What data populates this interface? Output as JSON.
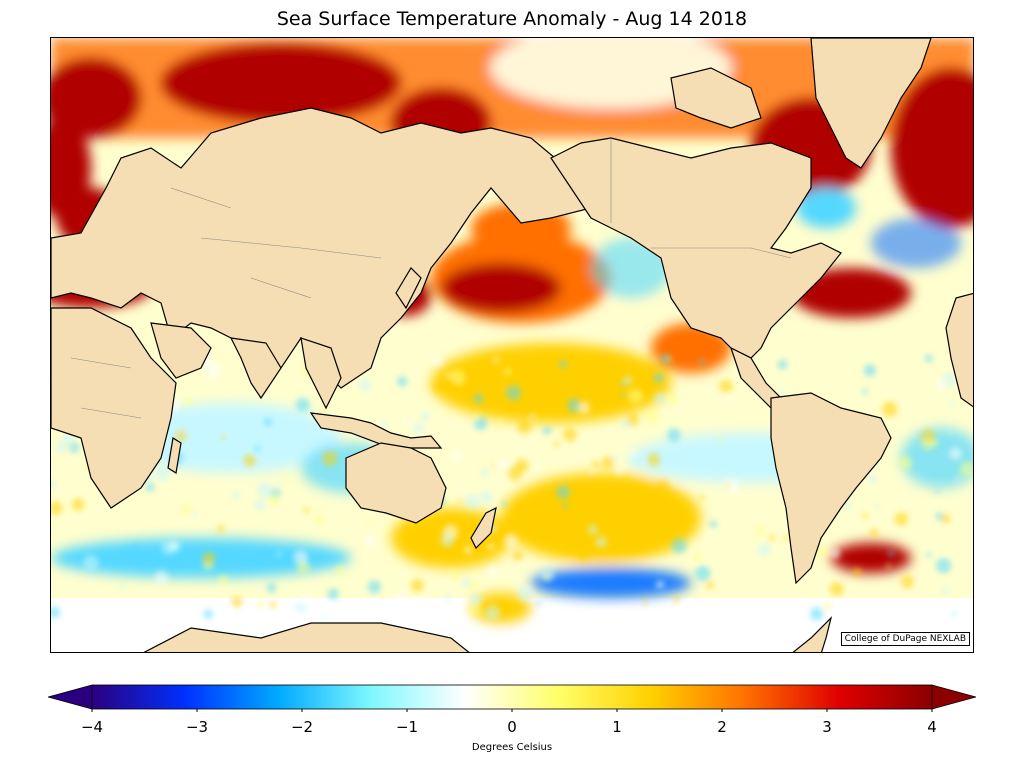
{
  "title": "Sea Surface Temperature Anomaly - Aug 14 2018",
  "credit": "College of DuPage NEXLAB",
  "colorbar": {
    "label": "Degrees Celsius",
    "min": -4,
    "max": 4,
    "ticks": [
      "−4",
      "−3",
      "−2",
      "−1",
      "0",
      "1",
      "2",
      "3",
      "4"
    ],
    "extend": "both",
    "stops": [
      "#2b0080",
      "#0030ff",
      "#00aaff",
      "#7ff8ff",
      "#ffffff",
      "#ffff66",
      "#ffd000",
      "#ff7000",
      "#e00000",
      "#8b0000"
    ]
  },
  "map": {
    "land_color": "#f5deb3",
    "ocean_background": "#fffdf4",
    "coast_color": "#000000",
    "border_color": "#888888",
    "anomaly_colors": {
      "strong_warm": "#b00000",
      "warm": "#ff7000",
      "mild_warm": "#ffd000",
      "slight_warm": "#ffff88",
      "slight_cool": "#c8f8ff",
      "cool": "#55d8ff",
      "strong_cool": "#1a7cff"
    }
  }
}
